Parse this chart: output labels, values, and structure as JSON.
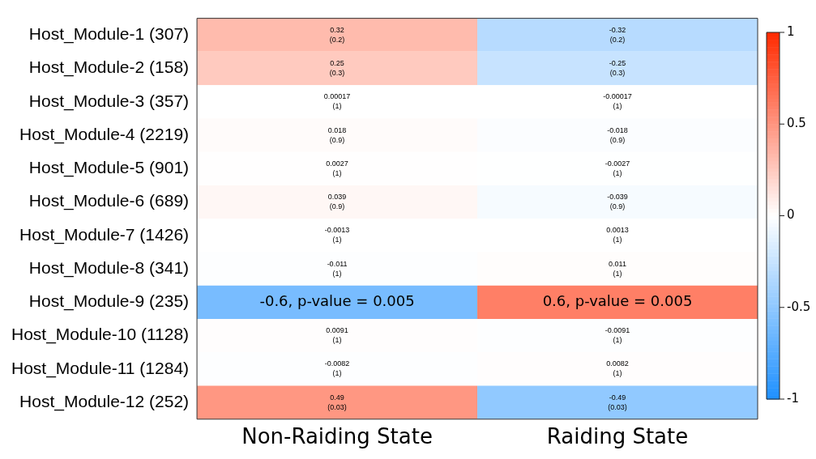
{
  "chart_data": {
    "type": "heatmap",
    "categories": [
      "Non-Raiding State",
      "Raiding State"
    ],
    "y_categories": [
      "Host_Module-1 (307)",
      "Host_Module-2 (158)",
      "Host_Module-3 (357)",
      "Host_Module-4 (2219)",
      "Host_Module-5 (901)",
      "Host_Module-6 (689)",
      "Host_Module-7 (1426)",
      "Host_Module-8 (341)",
      "Host_Module-9 (235)",
      "Host_Module-10 (1128)",
      "Host_Module-11 (1284)",
      "Host_Module-12 (252)"
    ],
    "cells": [
      [
        0.32,
        -0.32
      ],
      [
        0.25,
        -0.25
      ],
      [
        0.00017,
        -0.00017
      ],
      [
        0.018,
        -0.018
      ],
      [
        0.0027,
        -0.0027
      ],
      [
        0.039,
        -0.039
      ],
      [
        -0.0013,
        0.0013
      ],
      [
        -0.011,
        0.011
      ],
      [
        -0.6,
        0.6
      ],
      [
        0.0091,
        -0.0091
      ],
      [
        -0.0082,
        0.0082
      ],
      [
        0.49,
        -0.49
      ]
    ],
    "cell_labels": [
      [
        "0.32\n(0.2)",
        "-0.32\n(0.2)"
      ],
      [
        "0.25\n(0.3)",
        "-0.25\n(0.3)"
      ],
      [
        "0.00017\n(1)",
        "-0.00017\n(1)"
      ],
      [
        "0.018\n(0.9)",
        "-0.018\n(0.9)"
      ],
      [
        "0.0027\n(1)",
        "-0.0027\n(1)"
      ],
      [
        "0.039\n(0.9)",
        "-0.039\n(0.9)"
      ],
      [
        "-0.0013\n(1)",
        "0.0013\n(1)"
      ],
      [
        "-0.011\n(1)",
        "0.011\n(1)"
      ],
      [
        "-0.6, p-value = 0.005",
        "0.6, p-value = 0.005"
      ],
      [
        "0.0091\n(1)",
        "-0.0091\n(1)"
      ],
      [
        "-0.0082\n(1)",
        "0.0082\n(1)"
      ],
      [
        "0.49\n(0.03)",
        "-0.49\n(0.03)"
      ]
    ],
    "clim": [
      -1,
      1
    ],
    "cticks": [
      -1,
      -0.5,
      0,
      0.5,
      1
    ]
  }
}
